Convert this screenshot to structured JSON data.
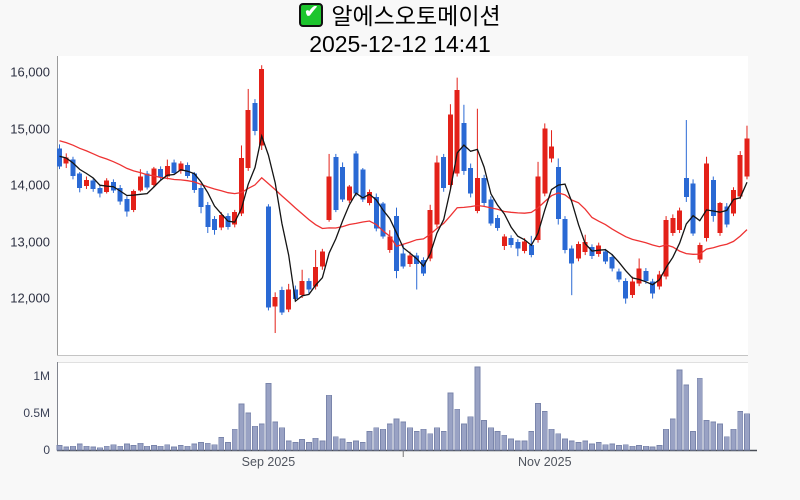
{
  "header": {
    "symbol_name": "알에스오토메이션",
    "timestamp": "2025-12-12 14:41",
    "checkbox_checked": true,
    "check_glyph": "✔"
  },
  "colors": {
    "up": "#e32119",
    "down": "#2a69d4",
    "ma_fast": "#141414",
    "ma_slow": "#ee3333",
    "volume_fill": "#99a2c4",
    "volume_stroke": "#7a85ab",
    "main_axis": "#9b9b9b",
    "vol_axis": "#82858e",
    "vol_baseline": "#4a4e57",
    "minor_tick": "#777777"
  },
  "price_axis": {
    "ticks": [
      "16,000",
      "15,000",
      "14,000",
      "13,000",
      "12,000"
    ],
    "values": [
      16000,
      15000,
      14000,
      13000,
      12000
    ]
  },
  "volume_axis": {
    "ticks": [
      "1M",
      "0.5M",
      "0"
    ],
    "values": [
      1.0,
      0.5,
      0
    ]
  },
  "x_axis": {
    "labels": [
      {
        "text": "Sep 2025",
        "candle_index": 31
      },
      {
        "text": "Nov 2025",
        "candle_index": 72
      }
    ],
    "minor_tick_candle_index": 51
  },
  "chart_data": {
    "type": "candlestick+volume",
    "title": "알에스오토메이션",
    "subtitle": "2025-12-12 14:41",
    "ylim": [
      11300,
      16250
    ],
    "volume_ylim_m": [
      0,
      1.19
    ],
    "legend_position": "none",
    "grid": false,
    "ma_fast_period": 5,
    "ma_slow_period": 20,
    "pre_closes": [
      15150,
      15100,
      15050,
      15000,
      14950,
      14900,
      14880,
      14850,
      14820,
      14800,
      14780,
      14750,
      14720,
      14700,
      14680,
      14650,
      14600,
      14520,
      14450
    ],
    "candles_ohlc": [
      [
        14650,
        14720,
        14280,
        14330
      ],
      [
        14380,
        14560,
        14300,
        14490
      ],
      [
        14450,
        14500,
        14100,
        14160
      ],
      [
        14200,
        14230,
        13870,
        13950
      ],
      [
        13980,
        14150,
        13930,
        14090
      ],
      [
        14080,
        14120,
        13880,
        13930
      ],
      [
        13950,
        14000,
        13780,
        13850
      ],
      [
        13880,
        14120,
        13850,
        14080
      ],
      [
        14050,
        14100,
        13860,
        13900
      ],
      [
        13950,
        14000,
        13650,
        13710
      ],
      [
        13750,
        13800,
        13440,
        13530
      ],
      [
        13560,
        13920,
        13520,
        13890
      ],
      [
        13900,
        14280,
        13880,
        14150
      ],
      [
        14200,
        14250,
        13920,
        13960
      ],
      [
        14000,
        14320,
        13960,
        14290
      ],
      [
        14280,
        14330,
        14090,
        14130
      ],
      [
        14150,
        14450,
        14100,
        14340
      ],
      [
        14400,
        14450,
        14180,
        14210
      ],
      [
        14250,
        14420,
        14200,
        14380
      ],
      [
        14350,
        14400,
        14120,
        14160
      ],
      [
        14200,
        14230,
        13860,
        13910
      ],
      [
        13950,
        14000,
        13500,
        13610
      ],
      [
        13650,
        13700,
        13150,
        13260
      ],
      [
        13400,
        13450,
        13120,
        13200
      ],
      [
        13250,
        13520,
        13200,
        13470
      ],
      [
        13450,
        13500,
        13210,
        13260
      ],
      [
        13300,
        13560,
        13250,
        13520
      ],
      [
        13500,
        14700,
        13450,
        14480
      ],
      [
        14300,
        15700,
        14250,
        15330
      ],
      [
        15450,
        15520,
        14880,
        14960
      ],
      [
        14700,
        16120,
        14620,
        16050
      ],
      [
        13620,
        13660,
        11780,
        11830
      ],
      [
        11850,
        12100,
        11380,
        12020
      ],
      [
        12140,
        12200,
        11700,
        11740
      ],
      [
        11800,
        12250,
        11750,
        12150
      ],
      [
        12150,
        12220,
        11950,
        11980
      ],
      [
        12050,
        12500,
        12000,
        12300
      ],
      [
        12300,
        12350,
        12080,
        12150
      ],
      [
        12200,
        12850,
        12150,
        12550
      ],
      [
        12560,
        12870,
        12500,
        12820
      ],
      [
        13380,
        14550,
        13350,
        14150
      ],
      [
        14500,
        14550,
        13520,
        13560
      ],
      [
        14320,
        14400,
        13700,
        13740
      ],
      [
        13730,
        14000,
        13680,
        13970
      ],
      [
        14560,
        14600,
        13800,
        13850
      ],
      [
        14270,
        14300,
        13700,
        13740
      ],
      [
        13680,
        13920,
        13640,
        13880
      ],
      [
        13790,
        13850,
        13180,
        13230
      ],
      [
        13670,
        13700,
        13050,
        13090
      ],
      [
        12850,
        13200,
        12800,
        13090
      ],
      [
        13450,
        13600,
        12350,
        12480
      ],
      [
        12790,
        12950,
        12520,
        12560
      ],
      [
        12600,
        12820,
        12550,
        12750
      ],
      [
        12750,
        12800,
        12150,
        12600
      ],
      [
        12670,
        12720,
        12390,
        12430
      ],
      [
        12700,
        13650,
        12650,
        13560
      ],
      [
        13300,
        14520,
        13250,
        14400
      ],
      [
        14500,
        14550,
        13880,
        13950
      ],
      [
        14000,
        15430,
        13950,
        15250
      ],
      [
        14200,
        15900,
        14150,
        15680
      ],
      [
        15100,
        15420,
        14180,
        14250
      ],
      [
        14300,
        14380,
        13780,
        13850
      ],
      [
        13540,
        15350,
        13500,
        14120
      ],
      [
        14120,
        14180,
        13620,
        13680
      ],
      [
        13740,
        13800,
        13280,
        13320
      ],
      [
        13420,
        13470,
        13190,
        13240
      ],
      [
        12920,
        13130,
        12850,
        13090
      ],
      [
        13060,
        13110,
        12890,
        12940
      ],
      [
        12990,
        13040,
        12740,
        12880
      ],
      [
        12830,
        13060,
        12790,
        13000
      ],
      [
        12940,
        13100,
        12720,
        12760
      ],
      [
        13030,
        14410,
        12980,
        14150
      ],
      [
        13850,
        15090,
        13800,
        15000
      ],
      [
        14470,
        14970,
        14400,
        14680
      ],
      [
        14320,
        14470,
        13300,
        13400
      ],
      [
        13400,
        13450,
        12790,
        12850
      ],
      [
        12880,
        12930,
        12050,
        12610
      ],
      [
        12700,
        13000,
        12650,
        12960
      ],
      [
        12810,
        13120,
        12760,
        12990
      ],
      [
        12900,
        12950,
        12690,
        12740
      ],
      [
        12780,
        12980,
        12730,
        12930
      ],
      [
        12820,
        12870,
        12600,
        12650
      ],
      [
        12730,
        12780,
        12470,
        12520
      ],
      [
        12470,
        12520,
        12280,
        12330
      ],
      [
        12300,
        12350,
        11900,
        11990
      ],
      [
        12050,
        12380,
        12000,
        12290
      ],
      [
        12260,
        12700,
        12210,
        12520
      ],
      [
        12480,
        12530,
        12250,
        12300
      ],
      [
        12290,
        12340,
        11990,
        12080
      ],
      [
        12200,
        12480,
        12150,
        12420
      ],
      [
        12380,
        13450,
        12330,
        13380
      ],
      [
        13150,
        13480,
        13100,
        13420
      ],
      [
        13200,
        13600,
        13150,
        13550
      ],
      [
        14120,
        15150,
        13700,
        13790
      ],
      [
        14030,
        14100,
        13100,
        13140
      ],
      [
        12680,
        12980,
        12620,
        12940
      ],
      [
        13060,
        14500,
        13000,
        14380
      ],
      [
        14090,
        14150,
        13350,
        13450
      ],
      [
        13150,
        13700,
        13100,
        13680
      ],
      [
        13620,
        13680,
        13250,
        13300
      ],
      [
        13500,
        13960,
        13450,
        13910
      ],
      [
        13800,
        14600,
        13750,
        14530
      ],
      [
        14150,
        15050,
        14100,
        14820
      ]
    ],
    "volumes_m": [
      0.06,
      0.04,
      0.05,
      0.08,
      0.05,
      0.04,
      0.03,
      0.05,
      0.07,
      0.05,
      0.08,
      0.06,
      0.09,
      0.05,
      0.06,
      0.05,
      0.07,
      0.04,
      0.06,
      0.05,
      0.08,
      0.1,
      0.09,
      0.07,
      0.17,
      0.1,
      0.28,
      0.62,
      0.5,
      0.32,
      0.35,
      0.9,
      0.38,
      0.3,
      0.12,
      0.1,
      0.14,
      0.1,
      0.16,
      0.12,
      0.74,
      0.18,
      0.15,
      0.1,
      0.12,
      0.1,
      0.25,
      0.3,
      0.28,
      0.35,
      0.42,
      0.38,
      0.3,
      0.25,
      0.28,
      0.22,
      0.3,
      0.25,
      0.77,
      0.55,
      0.35,
      0.45,
      1.12,
      0.4,
      0.3,
      0.25,
      0.2,
      0.15,
      0.12,
      0.12,
      0.25,
      0.63,
      0.52,
      0.28,
      0.22,
      0.15,
      0.12,
      0.1,
      0.12,
      0.08,
      0.1,
      0.07,
      0.08,
      0.06,
      0.07,
      0.05,
      0.06,
      0.05,
      0.04,
      0.06,
      0.28,
      0.42,
      1.08,
      0.88,
      0.25,
      0.97,
      0.4,
      0.38,
      0.35,
      0.18,
      0.28,
      0.52,
      0.49
    ]
  }
}
